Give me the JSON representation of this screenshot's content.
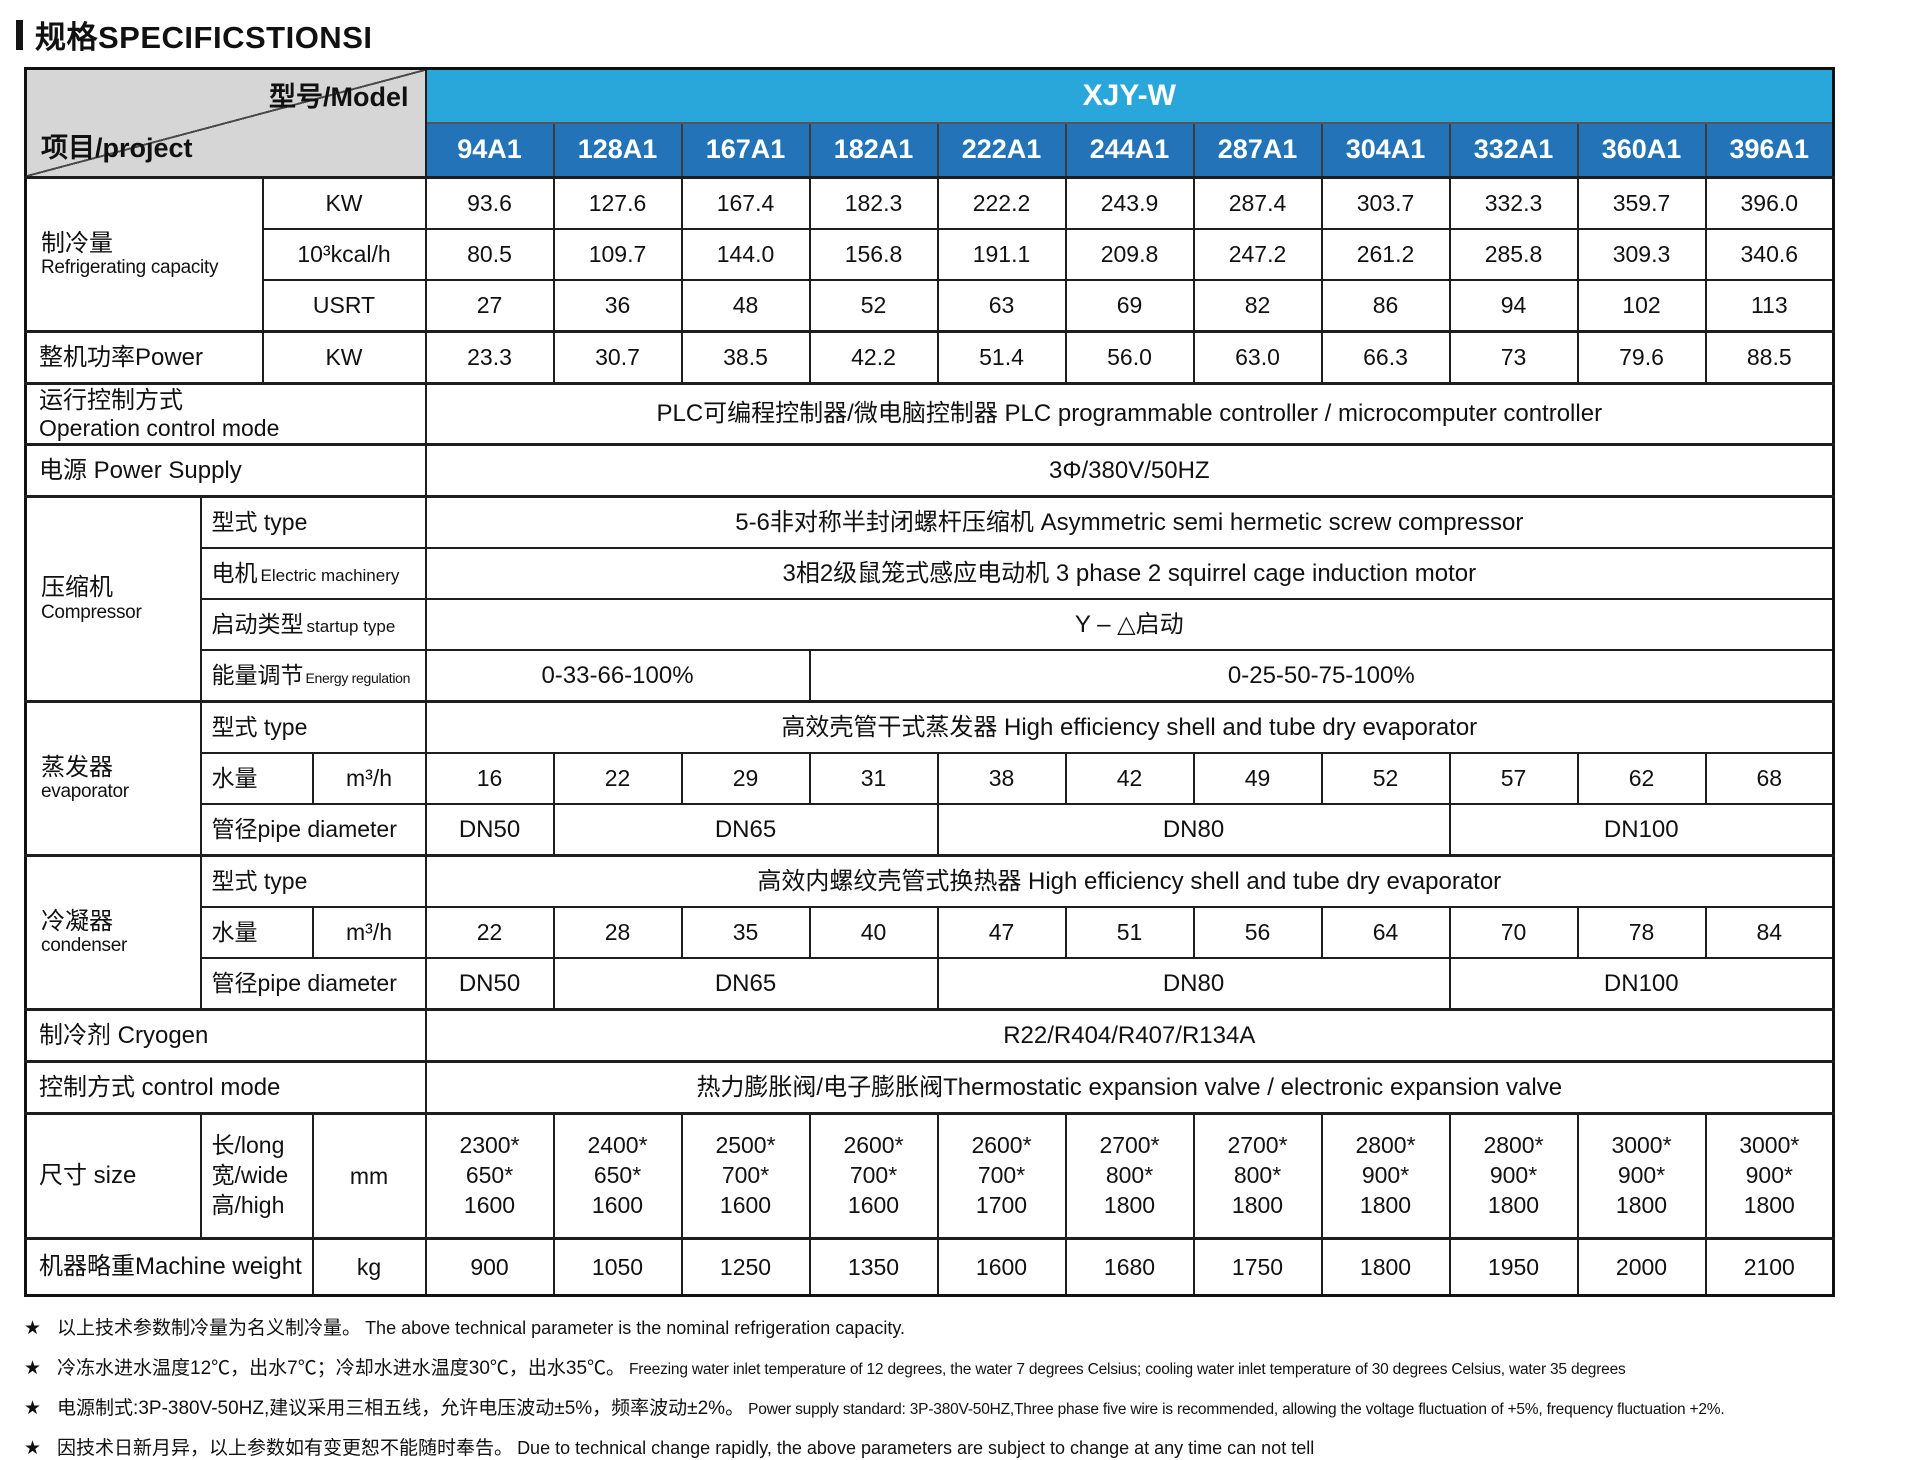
{
  "title": "规格SPECIFICSTIONSI",
  "header": {
    "model_label": "型号/Model",
    "project_label": "项目/project",
    "series": "XJY-W",
    "models": [
      "94A1",
      "128A1",
      "167A1",
      "182A1",
      "222A1",
      "244A1",
      "287A1",
      "304A1",
      "332A1",
      "360A1",
      "396A1"
    ]
  },
  "capacity": {
    "label_zh": "制冷量",
    "label_en": "Refrigerating capacity",
    "unit_kw": "KW",
    "unit_kcal": "10³kcal/h",
    "unit_usrt": "USRT",
    "kw": [
      "93.6",
      "127.6",
      "167.4",
      "182.3",
      "222.2",
      "243.9",
      "287.4",
      "303.7",
      "332.3",
      "359.7",
      "396.0"
    ],
    "kcal": [
      "80.5",
      "109.7",
      "144.0",
      "156.8",
      "191.1",
      "209.8",
      "247.2",
      "261.2",
      "285.8",
      "309.3",
      "340.6"
    ],
    "usrt": [
      "27",
      "36",
      "48",
      "52",
      "63",
      "69",
      "82",
      "86",
      "94",
      "102",
      "113"
    ]
  },
  "power": {
    "label": "整机功率Power",
    "unit": "KW",
    "values": [
      "23.3",
      "30.7",
      "38.5",
      "42.2",
      "51.4",
      "56.0",
      "63.0",
      "66.3",
      "73",
      "79.6",
      "88.5"
    ]
  },
  "operation": {
    "label_zh": "运行控制方式",
    "label_en": "Operation control mode",
    "value": "PLC可编程控制器/微电脑控制器  PLC programmable controller / microcomputer controller"
  },
  "supply": {
    "label": "电源 Power Supply",
    "value": "3Φ/380V/50HZ"
  },
  "compressor": {
    "label_zh": "压缩机",
    "label_en": "Compressor",
    "type_label": "型式 type",
    "type_value": "5-6非对称半封闭螺杆压缩机 Asymmetric semi hermetic screw compressor",
    "motor_label_zh": "电机",
    "motor_label_en": "Electric machinery",
    "motor_value": "3相2级鼠笼式感应电动机  3 phase 2 squirrel cage induction motor",
    "startup_label_zh": "启动类型",
    "startup_label_en": "startup type",
    "startup_value": "Y – △启动",
    "energy_label_zh": "能量调节",
    "energy_label_en": "Energy regulation",
    "energy_value_a": "0-33-66-100%",
    "energy_value_b": "0-25-50-75-100%"
  },
  "evaporator": {
    "label_zh": "蒸发器",
    "label_en": "evaporator",
    "type_label": "型式 type",
    "type_value": "高效壳管干式蒸发器 High efficiency shell and tube dry evaporator",
    "water_label": "水量",
    "water_unit": "m³/h",
    "water": [
      "16",
      "22",
      "29",
      "31",
      "38",
      "42",
      "49",
      "52",
      "57",
      "62",
      "68"
    ],
    "pipe_label": "管径pipe diameter",
    "pipe": [
      "DN50",
      "DN65",
      "DN80",
      "DN100"
    ]
  },
  "condenser": {
    "label_zh": "冷凝器",
    "label_en": "condenser",
    "type_label": "型式 type",
    "type_value": "高效内螺纹壳管式换热器 High efficiency shell and tube dry evaporator",
    "water_label": "水量",
    "water_unit": "m³/h",
    "water": [
      "22",
      "28",
      "35",
      "40",
      "47",
      "51",
      "56",
      "64",
      "70",
      "78",
      "84"
    ],
    "pipe_label": "管径pipe diameter",
    "pipe": [
      "DN50",
      "DN65",
      "DN80",
      "DN100"
    ]
  },
  "cryogen": {
    "label": "制冷剂 Cryogen",
    "value": "R22/R404/R407/R134A"
  },
  "control": {
    "label": "控制方式 control mode",
    "value": "热力膨胀阀/电子膨胀阀Thermostatic expansion valve / electronic expansion valve"
  },
  "size": {
    "label": "尺寸 size",
    "dims": "长/long\n宽/wide\n高/high",
    "unit": "mm",
    "values": [
      "2300*\n650*\n1600",
      "2400*\n650*\n1600",
      "2500*\n700*\n1600",
      "2600*\n700*\n1600",
      "2600*\n700*\n1700",
      "2700*\n800*\n1800",
      "2700*\n800*\n1800",
      "2800*\n900*\n1800",
      "2800*\n900*\n1800",
      "3000*\n900*\n1800",
      "3000*\n900*\n1800"
    ]
  },
  "weight": {
    "label": "机器略重Machine weight",
    "unit": "kg",
    "values": [
      "900",
      "1050",
      "1250",
      "1350",
      "1600",
      "1680",
      "1750",
      "1800",
      "1950",
      "2000",
      "2100"
    ]
  },
  "footnote_marker": "★",
  "footnotes": [
    {
      "zh": "以上技术参数制冷量为名义制冷量。",
      "en": "The above technical parameter is the nominal refrigeration capacity."
    },
    {
      "zh": "冷冻水进水温度12℃，出水7℃；冷却水进水温度30℃，出水35℃。",
      "en": "Freezing water inlet temperature of 12 degrees, the water 7 degrees Celsius; cooling water inlet temperature of 30 degrees Celsius, water 35 degrees"
    },
    {
      "zh": "电源制式:3P-380V-50HZ,建议采用三相五线，允许电压波动±5%，频率波动±2%。",
      "en": "Power supply standard: 3P-380V-50HZ,Three phase five wire is recommended, allowing the voltage fluctuation of +5%, frequency fluctuation +2%."
    },
    {
      "zh": "因技术日新月异，以上参数如有变更恕不能随时奉告。",
      "en": "Due to technical change rapidly, the above parameters are subject to change at any time can not tell"
    }
  ]
}
